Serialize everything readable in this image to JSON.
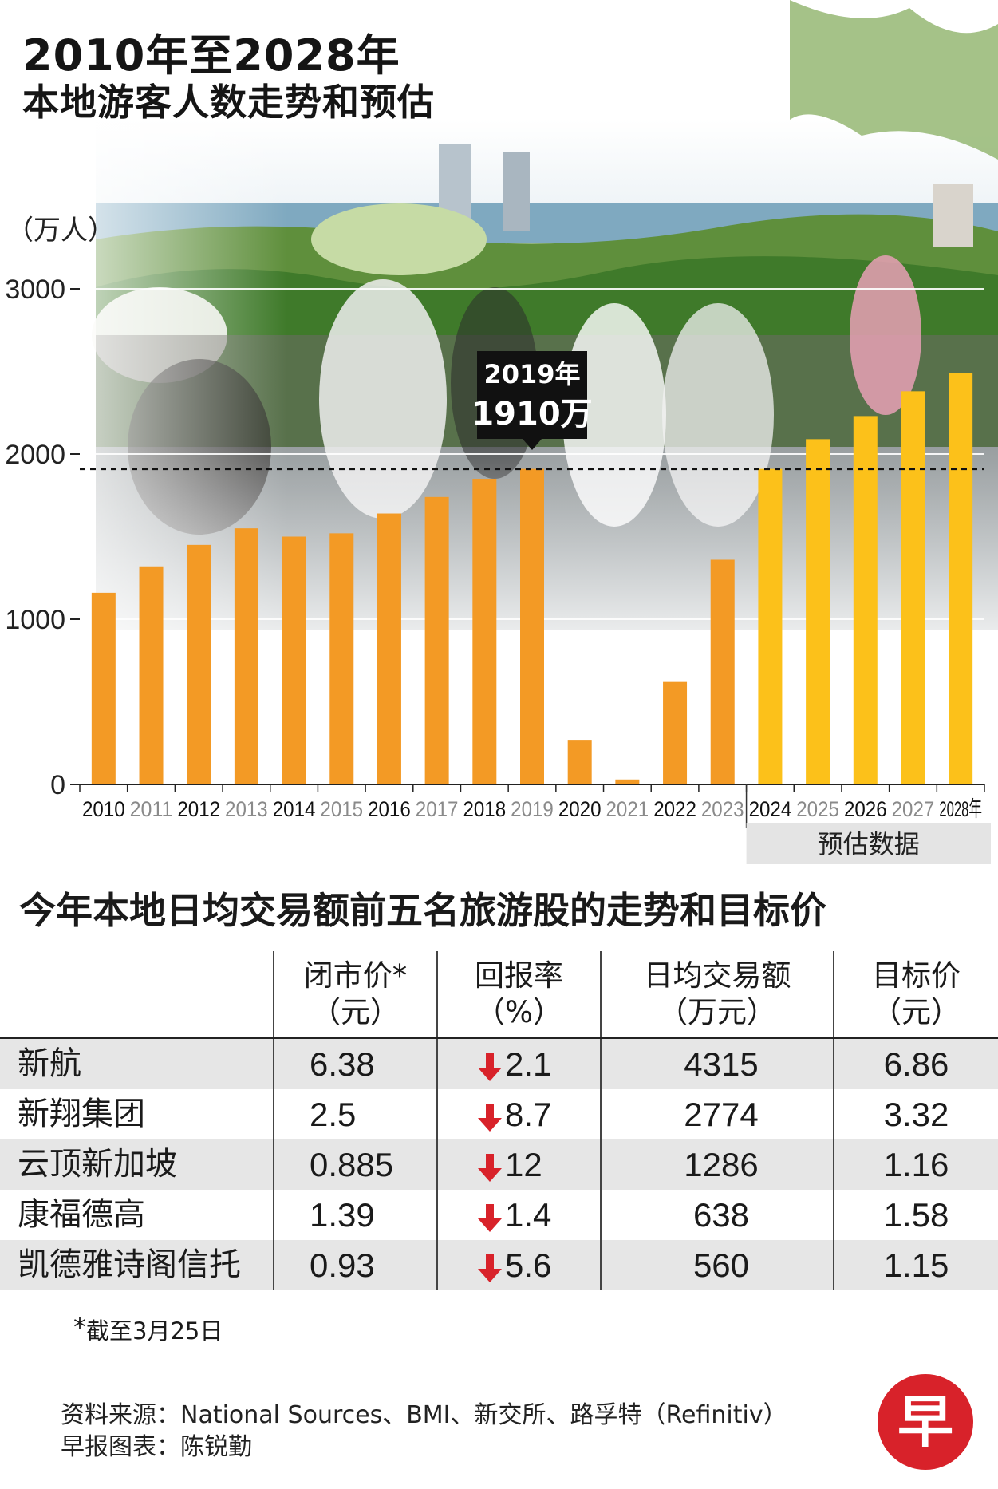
{
  "title_line1": "2010年至2028年",
  "title_line2": "本地游客人数走势和预估",
  "chart_data": {
    "type": "bar",
    "ylabel": "（万人）",
    "ylim": [
      0,
      3000
    ],
    "yticks": [
      "0",
      "1000",
      "2000",
      "3000"
    ],
    "categories": [
      "2010",
      "2011",
      "2012",
      "2013",
      "2014",
      "2015",
      "2016",
      "2017",
      "2018",
      "2019",
      "2020",
      "2021",
      "2022",
      "2023",
      "2024",
      "2025",
      "2026",
      "2027",
      "2028年"
    ],
    "values": [
      1160,
      1320,
      1450,
      1550,
      1500,
      1520,
      1640,
      1740,
      1850,
      1910,
      270,
      30,
      620,
      1360,
      1910,
      2090,
      2230,
      2380,
      2490
    ],
    "forecast_from_index": 14,
    "forecast_label": "预估数据",
    "reference_line": 1910,
    "callout": {
      "index": 9,
      "year": "2019年",
      "value": "1910万"
    },
    "colors": {
      "actual": "#f39a25",
      "forecast": "#fcc11a"
    },
    "grid": true
  },
  "table": {
    "title": "今年本地日均交易额前五名旅游股的走势和目标价",
    "headers": [
      {
        "label": "",
        "unit": ""
      },
      {
        "label": "闭市价*",
        "unit": "（元）"
      },
      {
        "label": "回报率",
        "unit": "（%）"
      },
      {
        "label": "日均交易额",
        "unit": "（万元）"
      },
      {
        "label": "目标价",
        "unit": "（元）"
      }
    ],
    "rows": [
      {
        "name": "新航",
        "close": "6.38",
        "return": "2.1",
        "volume": "4315",
        "target": "6.86"
      },
      {
        "name": "新翔集团",
        "close": "2.5",
        "return": "8.7",
        "volume": "2774",
        "target": "3.32"
      },
      {
        "name": "云顶新加坡",
        "close": "0.885",
        "return": "12",
        "volume": "1286",
        "target": "1.16"
      },
      {
        "name": "康福德高",
        "close": "1.39",
        "return": "1.4",
        "volume": "638",
        "target": "1.58"
      },
      {
        "name": "凯德雅诗阁信托",
        "close": "0.93",
        "return": "5.6",
        "volume": "560",
        "target": "1.15"
      }
    ],
    "return_direction": "down",
    "arrow_color": "#d8222a"
  },
  "footnote": {
    "star": "*",
    "text": "截至3月25日"
  },
  "source": "资料来源：National Sources、BMI、新交所、路孚特（Refinitiv）",
  "credit": "早报图表：陈锐勤",
  "logo_char": "早"
}
